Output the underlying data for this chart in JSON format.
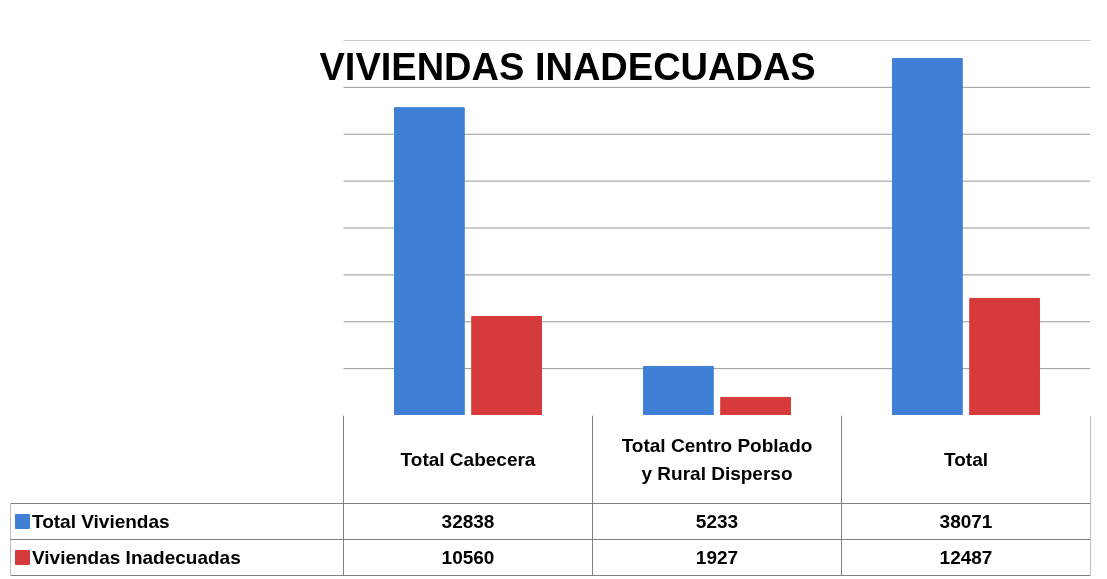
{
  "chart_data": {
    "type": "bar",
    "title": "VIVIENDAS INADECUADAS",
    "categories": [
      "Total Cabecera",
      "Total Centro Poblado y Rural Disperso",
      "Total"
    ],
    "series": [
      {
        "name": "Total Viviendas",
        "color": "#3f7fd6",
        "values": [
          32838,
          5233,
          38071
        ]
      },
      {
        "name": "Viviendas Inadecuadas",
        "color": "#d63a3a",
        "values": [
          10560,
          1927,
          12487
        ]
      }
    ],
    "ylim": [
      0,
      40000
    ],
    "yticks": [
      {
        "value": 5000,
        "label": null
      },
      {
        "value": 10000,
        "label": null
      },
      {
        "value": 15000,
        "label": null
      },
      {
        "value": 20000,
        "label": null
      },
      {
        "value": 25000,
        "label": null
      },
      {
        "value": 30000,
        "label": null
      },
      {
        "value": 35000,
        "label": null
      },
      {
        "value": 40000,
        "label": null
      }
    ],
    "grid": "y",
    "legend": "bottom",
    "data_labels": true,
    "tick_labels": "x"
  }
}
